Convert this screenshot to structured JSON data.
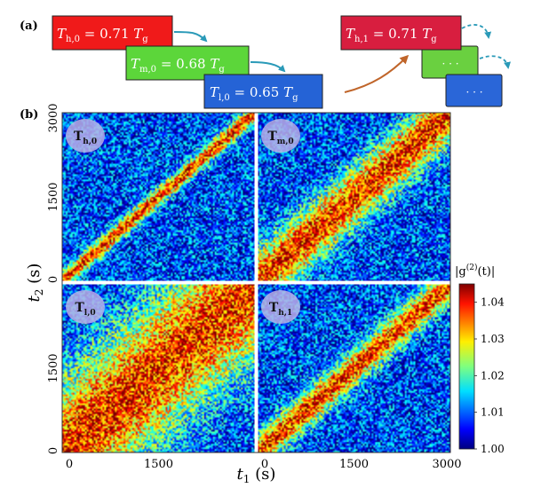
{
  "figure": {
    "panel_a_label": "(a)",
    "panel_b_label": "(b)"
  },
  "panel_a": {
    "boxes": [
      {
        "base": "T",
        "sub": "h,0",
        "rhs": "= 0.71 ",
        "unit": "T",
        "unit_sub": "g",
        "fill": "#f01a1a",
        "text_color": "#ffffff"
      },
      {
        "base": "T",
        "sub": "m,0",
        "rhs": "= 0.68 ",
        "unit": "T",
        "unit_sub": "g",
        "fill": "#5cd63a",
        "text_color": "#ffffff"
      },
      {
        "base": "T",
        "sub": "l,0",
        "rhs": "= 0.65 ",
        "unit": "T",
        "unit_sub": "g",
        "fill": "#2563d6",
        "text_color": "#ffffff"
      },
      {
        "base": "T",
        "sub": "h,1",
        "rhs": "= 0.71 ",
        "unit": "T",
        "unit_sub": "g",
        "fill": "#d81e3f",
        "text_color": "#ffffff"
      }
    ],
    "ellipsis": "· · ·",
    "colors": {
      "arrow_blue": "#2a9ab8",
      "arrow_orange": "#c0652a",
      "green_box": "#6ad040",
      "blue_box": "#2a66d8"
    }
  },
  "chart_data": {
    "type": "heatmap",
    "description": "2x2 grid of two-time intensity correlation maps g2(t1,t2)",
    "xlabel": "t",
    "xlabel_sub": "1",
    "xlabel_unit": "(s)",
    "ylabel": "t",
    "ylabel_sub": "2",
    "ylabel_unit": "(s)",
    "xlim": [
      0,
      3000
    ],
    "ylim": [
      0,
      3000
    ],
    "x_ticks": [
      "0",
      "1500",
      "3000"
    ],
    "y_ticks": [
      "0",
      "1500",
      "3000"
    ],
    "panels": [
      {
        "label": "T",
        "label_sub": "h,0",
        "diagonal_width_s": 120
      },
      {
        "label": "T",
        "label_sub": "m,0",
        "diagonal_width_s": 380
      },
      {
        "label": "T",
        "label_sub": "l,0",
        "diagonal_width_s": 900
      },
      {
        "label": "T",
        "label_sub": "h,1",
        "diagonal_width_s": 230
      }
    ],
    "colorbar": {
      "label": "|g",
      "label_sup": "(2)",
      "label_tail": "(t)|",
      "min": 1.0,
      "max": 1.045,
      "ticks": [
        "1.04",
        "1.03",
        "1.02",
        "1.01",
        "1.00"
      ],
      "colormap": "jet"
    }
  }
}
